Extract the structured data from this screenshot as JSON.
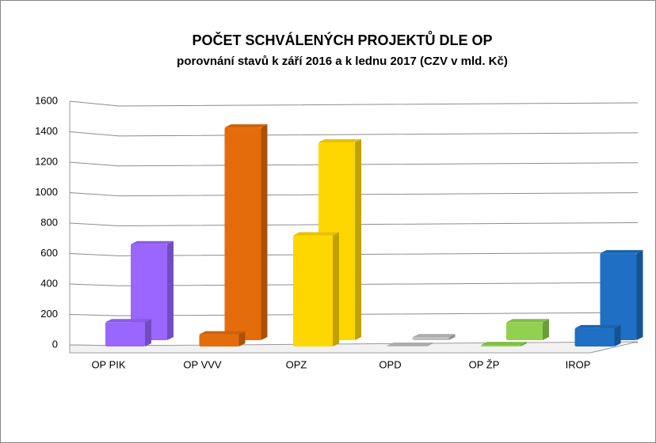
{
  "chart_data": {
    "type": "bar3d",
    "title": "POČET SCHVÁLENÝCH PROJEKTŮ DLE OP",
    "subtitle": "porovnání stavů k září 2016 a k lednu 2017 (CZV v mld. Kč)",
    "categories": [
      "OP PIK",
      "OP VVV",
      "OPZ",
      "OPD",
      "OP ŽP",
      "IROP"
    ],
    "colors": [
      "#9966ff",
      "#e46c0a",
      "#ffd700",
      "#bfbfbf",
      "#92d050",
      "#1f6fc4"
    ],
    "series": [
      {
        "values": [
          160,
          80,
          730,
          5,
          10,
          120
        ]
      },
      {
        "values": [
          640,
          1420,
          1320,
          20,
          120,
          580
        ]
      }
    ],
    "ylim": [
      0,
      1600
    ],
    "yticks": [
      0,
      200,
      400,
      600,
      800,
      1000,
      1200,
      1400,
      1600
    ],
    "grid": true
  }
}
